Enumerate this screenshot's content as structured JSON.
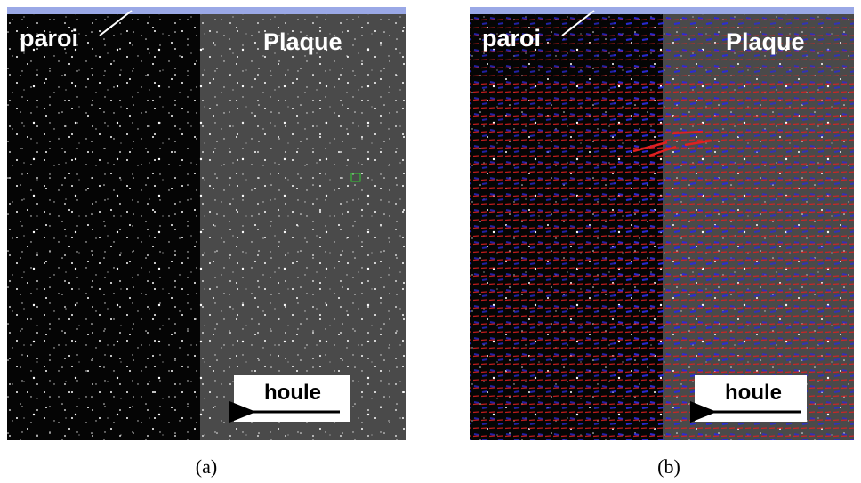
{
  "panels": [
    {
      "caption": "(a)",
      "wall_label": "paroi",
      "plate_label": "Plaque",
      "wave_label": "houle"
    },
    {
      "caption": "(b)",
      "wall_label": "paroi",
      "plate_label": "Plaque",
      "wave_label": "houle"
    }
  ]
}
